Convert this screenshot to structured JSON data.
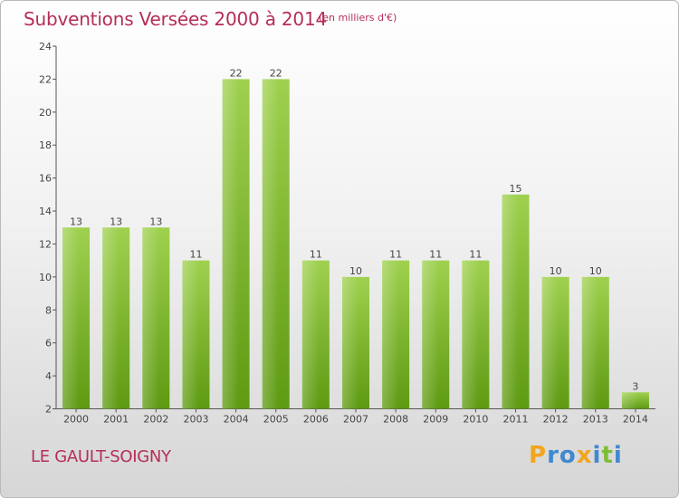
{
  "header": {
    "title": "Subventions Versées 2000 à 2014",
    "subtitle": "(en milliers d'€)"
  },
  "footer": {
    "commune": "LE GAULT-SOIGNY",
    "logo_text": "Proxiti",
    "logo_colors": [
      "#f2a51d",
      "#3f89d0",
      "#7cbe36"
    ]
  },
  "chart_data": {
    "type": "bar",
    "categories": [
      "2000",
      "2001",
      "2002",
      "2003",
      "2004",
      "2005",
      "2006",
      "2007",
      "2008",
      "2009",
      "2010",
      "2011",
      "2012",
      "2013",
      "2014"
    ],
    "values": [
      13,
      13,
      13,
      11,
      22,
      22,
      11,
      10,
      11,
      11,
      11,
      15,
      10,
      10,
      3
    ],
    "ylim": [
      2,
      24
    ],
    "yticks": [
      2,
      4,
      6,
      8,
      10,
      12,
      14,
      16,
      18,
      20,
      22,
      24
    ],
    "grid": false,
    "bar_color_top": "#9fd14f",
    "bar_color_bottom": "#5e9a12",
    "title_color": "#b52e57"
  }
}
